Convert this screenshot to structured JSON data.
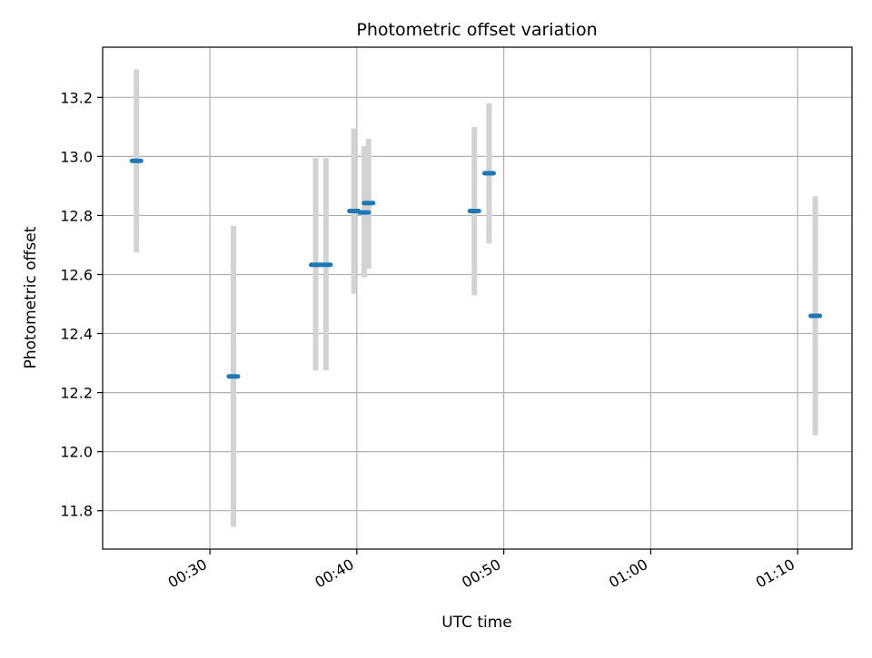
{
  "chart_data": {
    "type": "scatter",
    "title": "Photometric offset variation",
    "xlabel": "UTC time",
    "ylabel": "Photometric offset",
    "x_axis": {
      "format": "HH:MM",
      "range_minutes": [
        22.7,
        73.7
      ],
      "ticks_minutes": [
        30,
        40,
        50,
        60,
        70
      ],
      "tick_labels": [
        "00:30",
        "00:40",
        "00:50",
        "01:00",
        "01:10"
      ]
    },
    "y_axis": {
      "range": [
        11.67,
        13.37
      ],
      "ticks": [
        11.8,
        12.0,
        12.2,
        12.4,
        12.6,
        12.8,
        13.0,
        13.2
      ],
      "tick_labels": [
        "11.8",
        "12.0",
        "12.2",
        "12.4",
        "12.6",
        "12.8",
        "13.0",
        "13.2"
      ]
    },
    "grid": true,
    "marker_color": "#1f77b4",
    "errorbar_color": "#d3d3d3",
    "points": [
      {
        "time_minutes": 25.0,
        "time": "00:25",
        "value": 12.985,
        "low": 12.675,
        "high": 13.295
      },
      {
        "time_minutes": 31.6,
        "time": "00:31.6",
        "value": 12.255,
        "low": 11.745,
        "high": 12.765
      },
      {
        "time_minutes": 37.2,
        "time": "00:37.2",
        "value": 12.633,
        "low": 12.275,
        "high": 12.995
      },
      {
        "time_minutes": 37.9,
        "time": "00:37.9",
        "value": 12.633,
        "low": 12.275,
        "high": 12.995
      },
      {
        "time_minutes": 39.8,
        "time": "00:39.8",
        "value": 12.815,
        "low": 12.535,
        "high": 13.095
      },
      {
        "time_minutes": 40.5,
        "time": "00:40.5",
        "value": 12.81,
        "low": 12.59,
        "high": 13.035
      },
      {
        "time_minutes": 40.8,
        "time": "00:40.8",
        "value": 12.842,
        "low": 12.62,
        "high": 13.06
      },
      {
        "time_minutes": 48.0,
        "time": "00:48.0",
        "value": 12.815,
        "low": 12.53,
        "high": 13.1
      },
      {
        "time_minutes": 49.0,
        "time": "00:49.0",
        "value": 12.943,
        "low": 12.705,
        "high": 13.18
      },
      {
        "time_minutes": 71.2,
        "time": "01:11.2",
        "value": 12.46,
        "low": 12.055,
        "high": 12.865
      }
    ]
  }
}
